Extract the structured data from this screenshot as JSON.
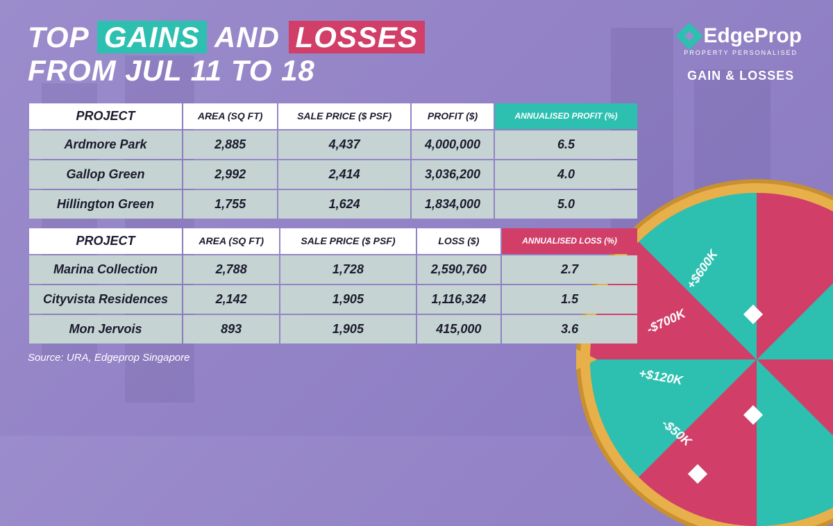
{
  "title": {
    "top_word": "TOP",
    "gains_word": "GAINS",
    "and_word": "AND",
    "losses_word": "LOSSES",
    "date_range": "FROM JUL 11 TO 18"
  },
  "logo": {
    "brand": "EdgeProp",
    "tagline": "PROPERTY PERSONALISED",
    "subtitle": "GAIN & LOSSES"
  },
  "gains_table": {
    "accent_color": "#2dbfb0",
    "headers": {
      "project": "PROJECT",
      "area": "AREA (SQ FT)",
      "price": "SALE PRICE ($ PSF)",
      "profit": "PROFIT ($)",
      "pct": "ANNUALISED PROFIT (%)"
    },
    "rows": [
      {
        "project": "Ardmore Park",
        "area": "2,885",
        "price": "4,437",
        "profit": "4,000,000",
        "pct": "6.5"
      },
      {
        "project": "Gallop Green",
        "area": "2,992",
        "price": "2,414",
        "profit": "3,036,200",
        "pct": "4.0"
      },
      {
        "project": "Hillington Green",
        "area": "1,755",
        "price": "1,624",
        "profit": "1,834,000",
        "pct": "5.0"
      }
    ]
  },
  "losses_table": {
    "accent_color": "#d13e68",
    "headers": {
      "project": "PROJECT",
      "area": "AREA (SQ FT)",
      "price": "SALE PRICE ($ PSF)",
      "loss": "LOSS ($)",
      "pct": "ANNUALISED LOSS (%)"
    },
    "rows": [
      {
        "project": "Marina Collection",
        "area": "2,788",
        "price": "1,728",
        "loss": "2,590,760",
        "pct": "2.7"
      },
      {
        "project": "Cityvista Residences",
        "area": "2,142",
        "price": "1,905",
        "loss": "1,116,324",
        "pct": "1.5"
      },
      {
        "project": "Mon Jervois",
        "area": "893",
        "price": "1,905",
        "loss": "415,000",
        "pct": "3.6"
      }
    ]
  },
  "source": "Source: URA, Edgeprop Singapore",
  "wheel": {
    "labels": [
      "+$600K",
      "-$700K",
      "+$120K",
      "-$50K"
    ],
    "border_color": "#e8b04a",
    "segment_colors": [
      "#2dbfb0",
      "#d13e68"
    ]
  },
  "colors": {
    "background": "#9b8ccc",
    "cell_bg": "#c5d4d2",
    "header_bg": "#ffffff",
    "text_dark": "#1a1a2e"
  }
}
